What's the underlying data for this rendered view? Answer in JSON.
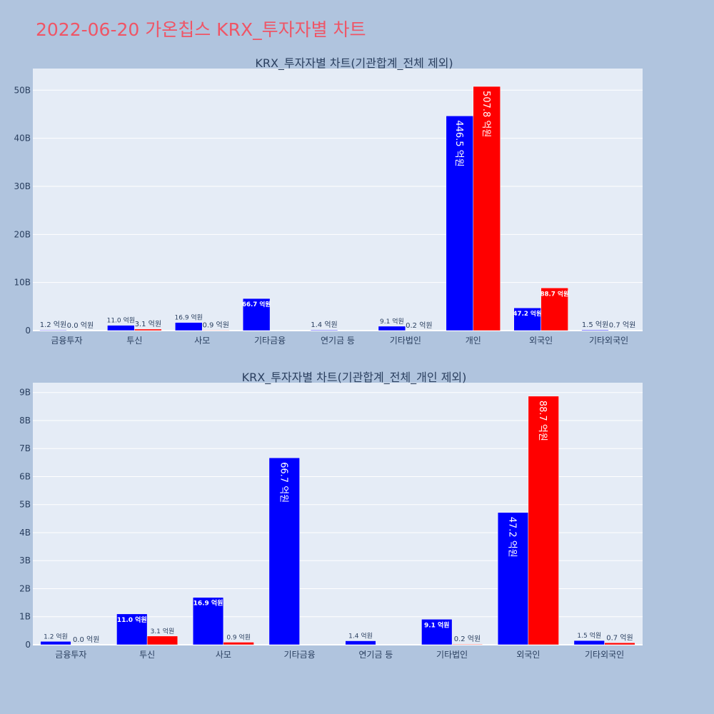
{
  "page": {
    "title": "2022-06-20 가온칩스 KRX_투자자별 차트"
  },
  "chart_data": [
    {
      "type": "bar",
      "title": "KRX_투자자별 차트(기관합계_전체 제외)",
      "categories": [
        "금융투자",
        "투신",
        "사모",
        "기타금융",
        "연기금 등",
        "기타법인",
        "개인",
        "외국인",
        "기타외국인"
      ],
      "series": [
        {
          "color": "#0000ff",
          "values": [
            0.12,
            1.1,
            1.69,
            6.67,
            0.14,
            0.91,
            44.65,
            4.72,
            0.15
          ],
          "labels": [
            "1.2 억원",
            "11.0 억원",
            "16.9 억원",
            "66.7 억원",
            "1.4 억원",
            "9.1 억원",
            "446.5 억원",
            "47.2 억원",
            "1.5 억원"
          ]
        },
        {
          "color": "#ff0000",
          "values": [
            0.0,
            0.31,
            0.09,
            0.0,
            0.0,
            0.02,
            50.78,
            8.87,
            0.07
          ],
          "labels": [
            "0.0 억원",
            "3.1 억원",
            "0.9 억원",
            "",
            "",
            "0.2 억원",
            "507.8 억원",
            "88.7 억원",
            "0.7 억원"
          ]
        }
      ],
      "ylim": [
        0,
        54.5
      ],
      "yticks": [
        0,
        10,
        20,
        30,
        40,
        50
      ],
      "ytick_labels": [
        "0",
        "10B",
        "20B",
        "30B",
        "40B",
        "50B"
      ],
      "grid": true,
      "xlabel": "",
      "ylabel": ""
    },
    {
      "type": "bar",
      "title": "KRX_투자자별 차트(기관합계_전체_개인 제외)",
      "categories": [
        "금융투자",
        "투신",
        "사모",
        "기타금융",
        "연기금 등",
        "기타법인",
        "외국인",
        "기타외국인"
      ],
      "series": [
        {
          "color": "#0000ff",
          "values": [
            0.12,
            1.1,
            1.69,
            6.67,
            0.14,
            0.91,
            4.72,
            0.15
          ],
          "labels": [
            "1.2 억원",
            "11.0 억원",
            "16.9 억원",
            "66.7 억원",
            "1.4 억원",
            "9.1 억원",
            "47.2 억원",
            "1.5 억원"
          ]
        },
        {
          "color": "#ff0000",
          "values": [
            0.0,
            0.31,
            0.09,
            0.0,
            0.0,
            0.02,
            8.87,
            0.07
          ],
          "labels": [
            "0.0 억원",
            "3.1 억원",
            "0.9 억원",
            "",
            "",
            "0.2 억원",
            "88.7 억원",
            "0.7 억원"
          ]
        }
      ],
      "ylim": [
        0,
        9.35
      ],
      "yticks": [
        0,
        1,
        2,
        3,
        4,
        5,
        6,
        7,
        8,
        9
      ],
      "ytick_labels": [
        "0",
        "1B",
        "2B",
        "3B",
        "4B",
        "5B",
        "6B",
        "7B",
        "8B",
        "9B"
      ],
      "grid": true,
      "xlabel": "",
      "ylabel": ""
    }
  ]
}
